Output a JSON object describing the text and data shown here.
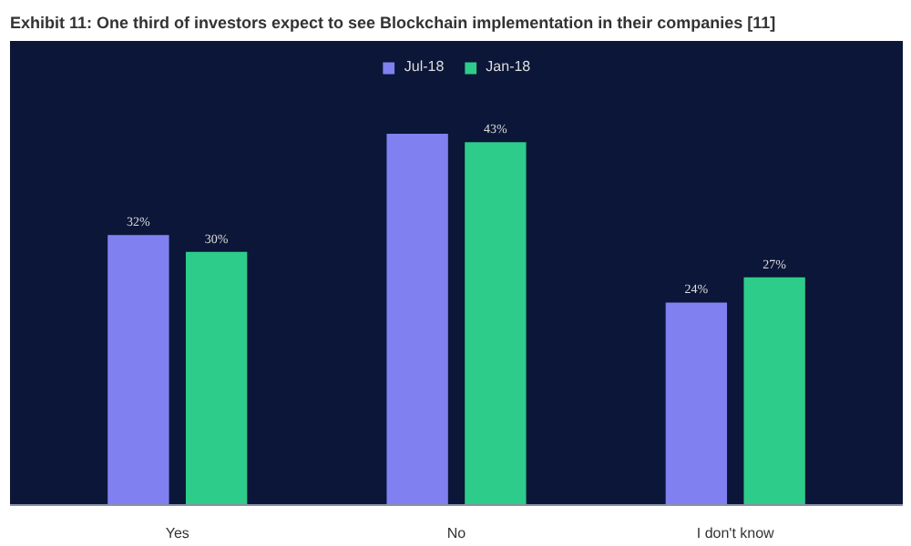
{
  "chart_data": {
    "type": "bar",
    "title": "Exhibit 11: One third of investors expect to see Blockchain implementation in their companies [11]",
    "categories": [
      "Yes",
      "No",
      "I don't know"
    ],
    "series": [
      {
        "name": "Jul-18",
        "color": "#8080f0",
        "values": [
          32,
          44,
          24
        ],
        "value_labels": [
          "32%",
          null,
          "24%"
        ]
      },
      {
        "name": "Jan-18",
        "color": "#2ecc8a",
        "values": [
          30,
          43,
          27
        ],
        "value_labels": [
          "30%",
          "43%",
          "27%"
        ]
      }
    ],
    "legend": "top",
    "grid": false
  }
}
